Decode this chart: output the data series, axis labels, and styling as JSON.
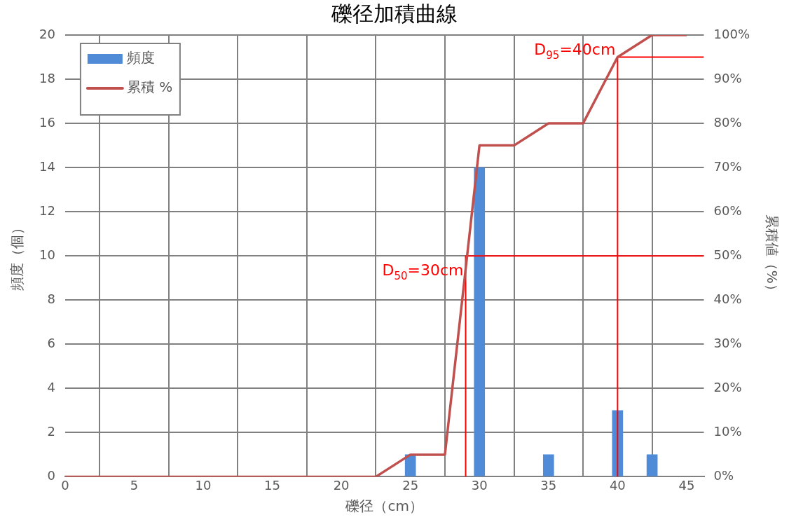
{
  "chart_data": {
    "type": "bar",
    "title": "礫径加積曲線",
    "xlabel": "礫径（cm）",
    "ylabel": "頻度（個）",
    "y2label": "累積値（%）",
    "xlim": [
      0,
      46.25
    ],
    "xticks": [
      0,
      5,
      10,
      15,
      20,
      25,
      30,
      35,
      40,
      45
    ],
    "ylim": [
      0,
      20
    ],
    "yticks": [
      0,
      2,
      4,
      6,
      8,
      10,
      12,
      14,
      16,
      18,
      20
    ],
    "y2lim": [
      0,
      100
    ],
    "y2ticks": [
      {
        "value": 0,
        "label": "0%"
      },
      {
        "value": 10,
        "label": "10%"
      },
      {
        "value": 20,
        "label": "20%"
      },
      {
        "value": 30,
        "label": "30%"
      },
      {
        "value": 40,
        "label": "40%"
      },
      {
        "value": 50,
        "label": "50%"
      },
      {
        "value": 60,
        "label": "60%"
      },
      {
        "value": 70,
        "label": "70%"
      },
      {
        "value": 80,
        "label": "80%"
      },
      {
        "value": 90,
        "label": "90%"
      },
      {
        "value": 100,
        "label": "100%"
      }
    ],
    "grid": true,
    "legend": "top left",
    "series": [
      {
        "name": "頻度",
        "color": "#4f8bd6",
        "x": [
          25,
          30,
          35,
          40,
          42.5
        ],
        "values": [
          1,
          14,
          1,
          3,
          1
        ]
      },
      {
        "name": "累積 %",
        "type": "line",
        "axis": "y2",
        "color": "#c0504d",
        "x": [
          0,
          22.5,
          25,
          27.5,
          30,
          32.5,
          35,
          37.5,
          40,
          42.5,
          45
        ],
        "values": [
          0,
          0,
          5,
          5,
          75,
          75,
          80,
          80,
          95,
          100,
          100
        ]
      },
      {
        "type": "line",
        "axis": "y2",
        "color": "#ff0000",
        "x": [
          29,
          29,
          46.25
        ],
        "values": [
          0,
          50,
          50
        ]
      },
      {
        "type": "line",
        "axis": "y2",
        "color": "#ff0000",
        "x": [
          40,
          40,
          46.25
        ],
        "values": [
          0,
          95,
          95
        ]
      }
    ],
    "annotations": [
      "D$_{50}$=30cm",
      "D$_{95}$=40cm"
    ]
  }
}
